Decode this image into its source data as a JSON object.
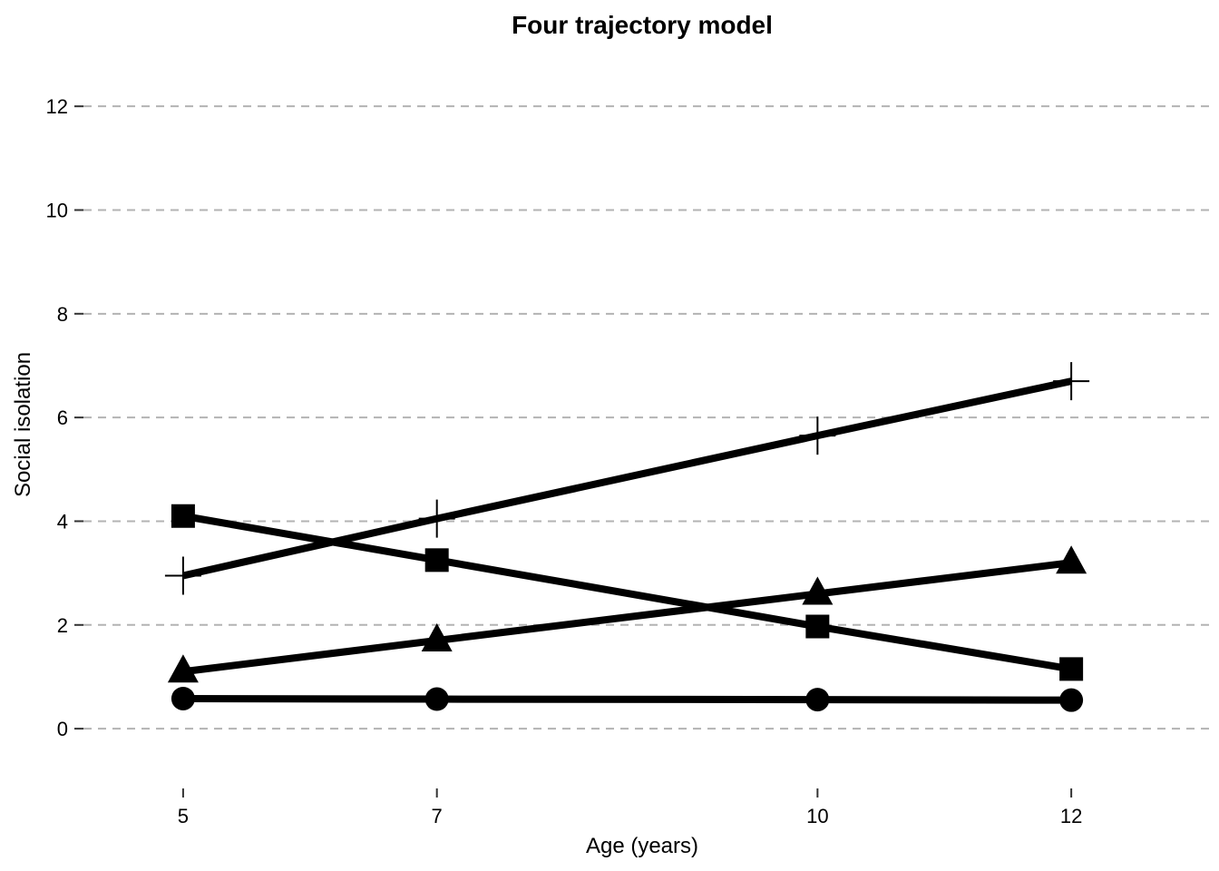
{
  "chart_data": {
    "type": "line",
    "title": "Four trajectory model",
    "xlabel": "Age (years)",
    "ylabel": "Social isolation",
    "x": [
      5,
      7,
      10,
      12
    ],
    "x_ticks": [
      "5",
      "7",
      "10",
      "12"
    ],
    "y_ticks": [
      "0",
      "2",
      "4",
      "6",
      "8",
      "10",
      "12"
    ],
    "xlim": [
      4.2,
      13.1
    ],
    "ylim": [
      -1.1,
      13
    ],
    "grid": "horizontal-dashed",
    "legend": "none",
    "series": [
      {
        "marker": "circle",
        "values": [
          0.58,
          0.57,
          0.56,
          0.55
        ]
      },
      {
        "marker": "triangle",
        "values": [
          1.1,
          1.7,
          2.6,
          3.2
        ]
      },
      {
        "marker": "square",
        "values": [
          4.1,
          3.25,
          1.97,
          1.15
        ]
      },
      {
        "marker": "cross",
        "values": [
          2.95,
          4.05,
          5.65,
          6.7
        ]
      }
    ],
    "colors": {
      "line": "#000000",
      "grid": "#b3b3b3"
    }
  }
}
